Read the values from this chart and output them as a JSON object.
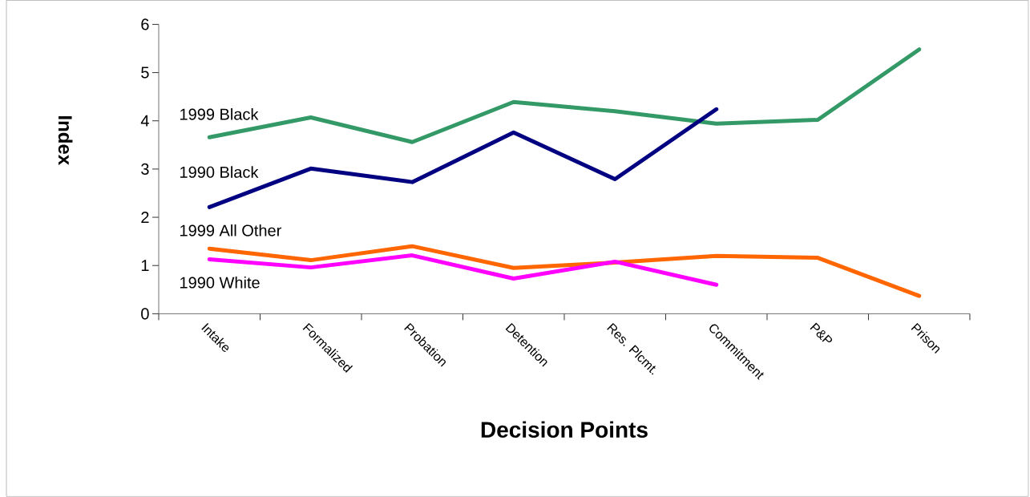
{
  "chart_data": {
    "type": "line",
    "xlabel": "Decision Points",
    "ylabel": "Index",
    "categories": [
      "Intake",
      "Formalized",
      "Probation",
      "Detention",
      "Res. Plcmt.",
      "Commitment",
      "P&P",
      "Prison"
    ],
    "series": [
      {
        "name": "1999 Black",
        "color": "#339966",
        "values": [
          3.66,
          4.07,
          3.56,
          4.39,
          4.2,
          3.94,
          4.02,
          5.48
        ]
      },
      {
        "name": "1990 Black",
        "color": "#000080",
        "values": [
          2.21,
          3.01,
          2.73,
          3.76,
          2.79,
          4.24,
          null,
          null
        ]
      },
      {
        "name": "1999 All Other",
        "color": "#ff6600",
        "values": [
          1.35,
          1.11,
          1.4,
          0.95,
          1.06,
          1.2,
          1.16,
          0.37
        ]
      },
      {
        "name": "1990 White",
        "color": "#ff00ff",
        "values": [
          1.13,
          0.96,
          1.21,
          0.73,
          1.08,
          0.6,
          null,
          null
        ]
      }
    ],
    "ylim": [
      0,
      6
    ],
    "yticks": [
      0,
      1,
      2,
      3,
      4,
      5,
      6
    ],
    "grid": false,
    "legend": false,
    "marker": "none",
    "line_style": "solid"
  }
}
